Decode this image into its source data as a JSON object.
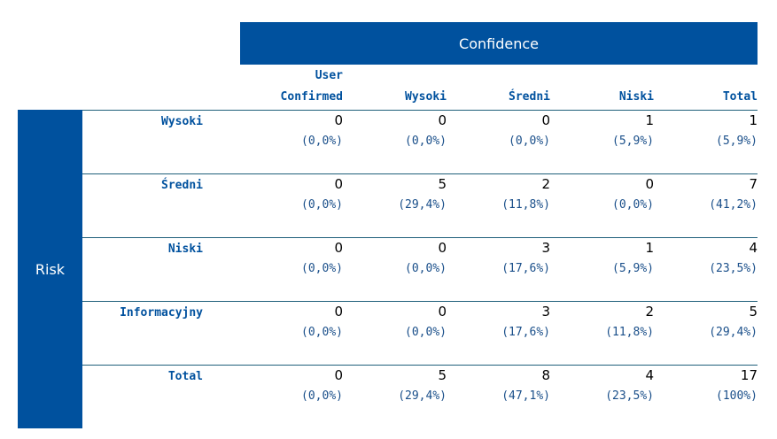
{
  "header": {
    "column_group": "Confidence",
    "row_group": "Risk"
  },
  "columns": [
    {
      "lines": [
        "User",
        "Confirmed"
      ]
    },
    {
      "lines": [
        "Wysoki"
      ]
    },
    {
      "lines": [
        "Średni"
      ]
    },
    {
      "lines": [
        "Niski"
      ]
    },
    {
      "lines": [
        "Total"
      ]
    }
  ],
  "rows": [
    {
      "label": "Wysoki",
      "cells": [
        {
          "count": "0",
          "pct": "(0,0%)"
        },
        {
          "count": "0",
          "pct": "(0,0%)"
        },
        {
          "count": "0",
          "pct": "(0,0%)"
        },
        {
          "count": "1",
          "pct": "(5,9%)"
        },
        {
          "count": "1",
          "pct": "(5,9%)"
        }
      ]
    },
    {
      "label": "Średni",
      "cells": [
        {
          "count": "0",
          "pct": "(0,0%)"
        },
        {
          "count": "5",
          "pct": "(29,4%)"
        },
        {
          "count": "2",
          "pct": "(11,8%)"
        },
        {
          "count": "0",
          "pct": "(0,0%)"
        },
        {
          "count": "7",
          "pct": "(41,2%)"
        }
      ]
    },
    {
      "label": "Niski",
      "cells": [
        {
          "count": "0",
          "pct": "(0,0%)"
        },
        {
          "count": "0",
          "pct": "(0,0%)"
        },
        {
          "count": "3",
          "pct": "(17,6%)"
        },
        {
          "count": "1",
          "pct": "(5,9%)"
        },
        {
          "count": "4",
          "pct": "(23,5%)"
        }
      ]
    },
    {
      "label": "Informacyjny",
      "cells": [
        {
          "count": "0",
          "pct": "(0,0%)"
        },
        {
          "count": "0",
          "pct": "(0,0%)"
        },
        {
          "count": "3",
          "pct": "(17,6%)"
        },
        {
          "count": "2",
          "pct": "(11,8%)"
        },
        {
          "count": "5",
          "pct": "(29,4%)"
        }
      ]
    },
    {
      "label": "Total",
      "cells": [
        {
          "count": "0",
          "pct": "(0,0%)"
        },
        {
          "count": "5",
          "pct": "(29,4%)"
        },
        {
          "count": "8",
          "pct": "(47,1%)"
        },
        {
          "count": "4",
          "pct": "(23,5%)"
        },
        {
          "count": "17",
          "pct": "(100%)"
        }
      ]
    }
  ],
  "colors": {
    "header_bg": "#00519e",
    "label_text": "#00519e",
    "pct_text": "#1a4f8a",
    "rule": "#1f5f7a"
  }
}
